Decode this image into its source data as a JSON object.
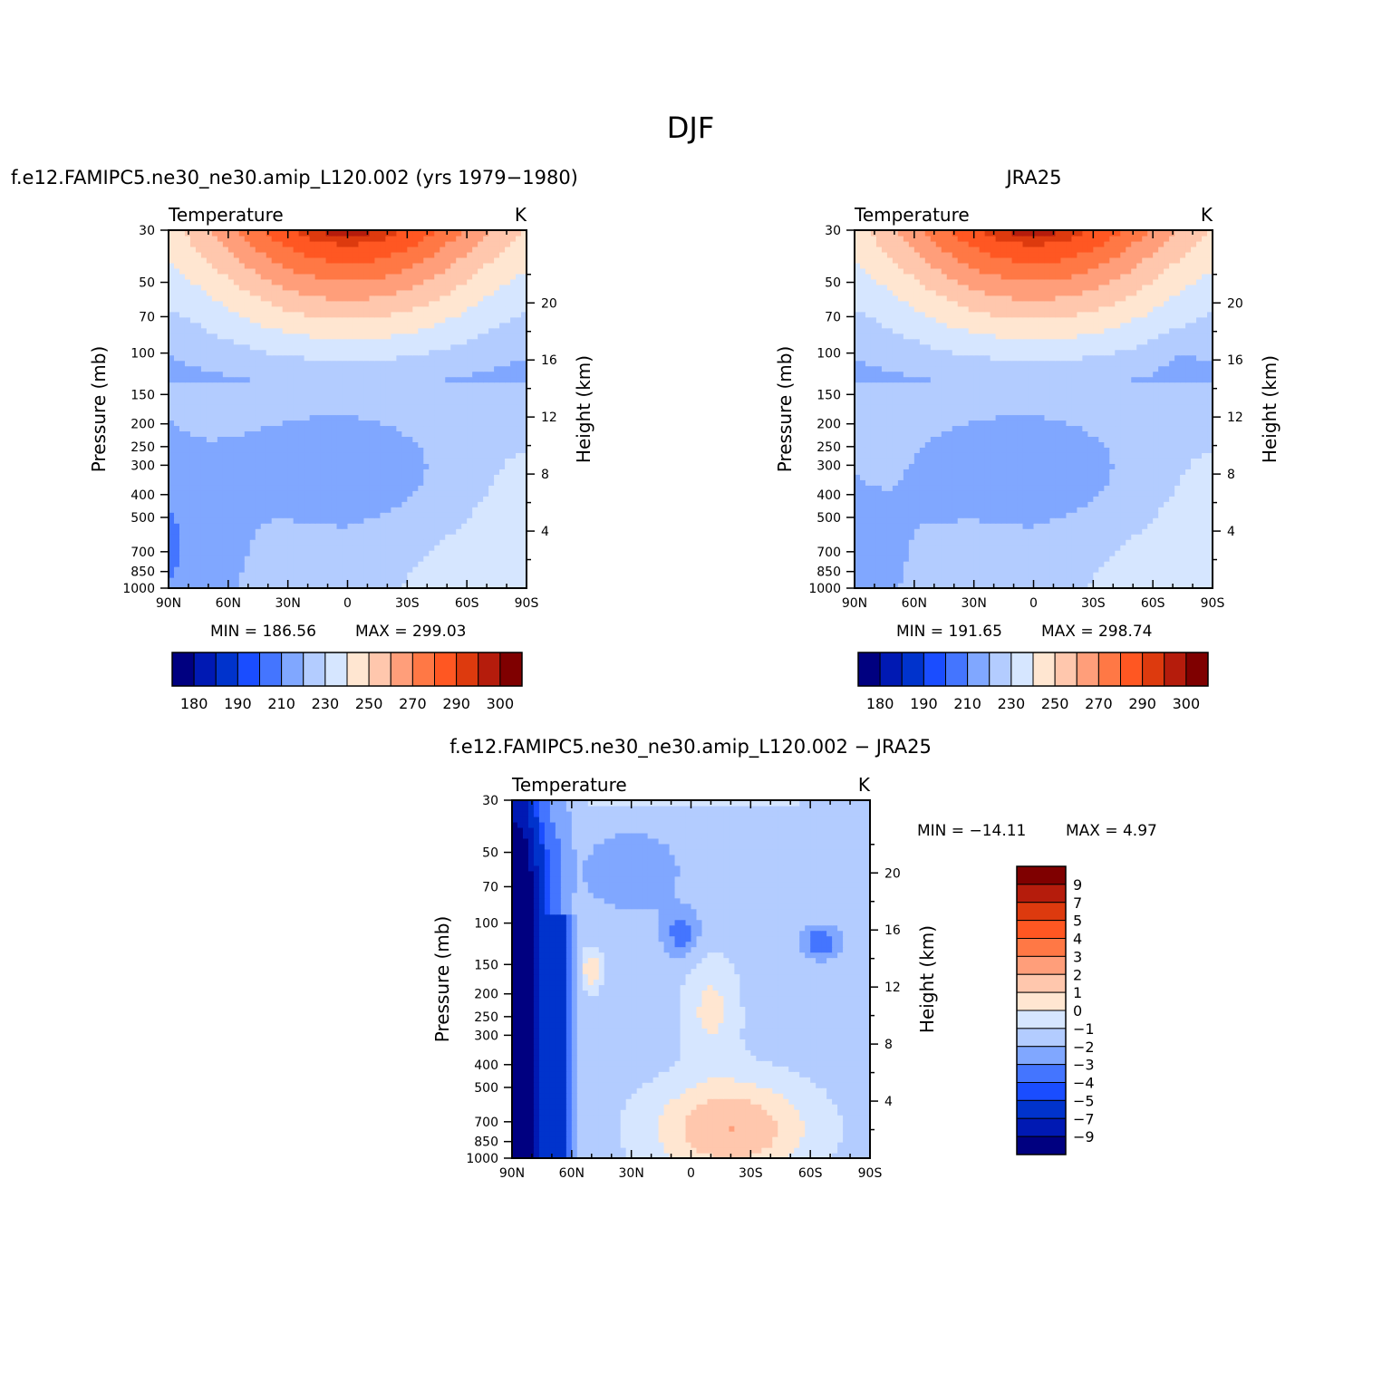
{
  "super_title": "DJF",
  "chart_data": [
    {
      "type": "heatmap",
      "title": "f.e12.FAMIPC5.ne30_ne30.amip_L120.002 (yrs 1979−1980)",
      "left_string": "Temperature",
      "right_string": "K",
      "xlabel": "",
      "ylabel": "Pressure (mb)",
      "ylabel_right": "Height (km)",
      "x_ticks": [
        "90N",
        "60N",
        "30N",
        "0",
        "30S",
        "60S",
        "90S"
      ],
      "y_ticks": [
        "30",
        "50",
        "70",
        "100",
        "150",
        "200",
        "250",
        "300",
        "400",
        "500",
        "700",
        "850",
        "1000"
      ],
      "y_right_ticks": [
        "20",
        "16",
        "12",
        "8",
        "4"
      ],
      "ylim": [
        1000,
        30
      ],
      "min_label": "MIN = 186.56",
      "max_label": "MAX = 299.03",
      "min": 186.56,
      "max": 299.03,
      "colorbar_labels": [
        "180",
        "190",
        "210",
        "230",
        "250",
        "270",
        "290",
        "300"
      ],
      "colorbar_levels": [
        180,
        185,
        190,
        200,
        210,
        220,
        230,
        240,
        250,
        260,
        270,
        280,
        290,
        295,
        300
      ]
    },
    {
      "type": "heatmap",
      "title": "JRA25",
      "left_string": "Temperature",
      "right_string": "K",
      "xlabel": "",
      "ylabel": "Pressure (mb)",
      "ylabel_right": "Height (km)",
      "x_ticks": [
        "90N",
        "60N",
        "30N",
        "0",
        "30S",
        "60S",
        "90S"
      ],
      "y_ticks": [
        "30",
        "50",
        "70",
        "100",
        "150",
        "200",
        "250",
        "300",
        "400",
        "500",
        "700",
        "850",
        "1000"
      ],
      "y_right_ticks": [
        "20",
        "16",
        "12",
        "8",
        "4"
      ],
      "ylim": [
        1000,
        30
      ],
      "min_label": "MIN = 191.65",
      "max_label": "MAX = 298.74",
      "min": 191.65,
      "max": 298.74,
      "colorbar_labels": [
        "180",
        "190",
        "210",
        "230",
        "250",
        "270",
        "290",
        "300"
      ],
      "colorbar_levels": [
        180,
        185,
        190,
        200,
        210,
        220,
        230,
        240,
        250,
        260,
        270,
        280,
        290,
        295,
        300
      ]
    },
    {
      "type": "heatmap",
      "title": "f.e12.FAMIPC5.ne30_ne30.amip_L120.002 − JRA25",
      "left_string": "Temperature",
      "right_string": "K",
      "xlabel": "",
      "ylabel": "Pressure (mb)",
      "ylabel_right": "Height (km)",
      "x_ticks": [
        "90N",
        "60N",
        "30N",
        "0",
        "30S",
        "60S",
        "90S"
      ],
      "y_ticks": [
        "30",
        "50",
        "70",
        "100",
        "150",
        "200",
        "250",
        "300",
        "400",
        "500",
        "700",
        "850",
        "1000"
      ],
      "y_right_ticks": [
        "20",
        "16",
        "12",
        "8",
        "4"
      ],
      "ylim": [
        1000,
        30
      ],
      "min_label": "MIN = −14.11",
      "max_label": "MAX = 4.97",
      "min": -14.11,
      "max": 4.97,
      "colorbar_labels": [
        "9",
        "7",
        "5",
        "4",
        "3",
        "2",
        "1",
        "0",
        "−1",
        "−2",
        "−3",
        "−4",
        "−5",
        "−7",
        "−9"
      ],
      "colorbar_levels": [
        -9,
        -7,
        -5,
        -4,
        -3,
        -2,
        -1,
        0,
        1,
        2,
        3,
        4,
        5,
        7,
        9
      ]
    }
  ],
  "colors": {
    "palette": [
      "#000080",
      "#0019b3",
      "#0033cc",
      "#1a4dff",
      "#4475ff",
      "#80a7ff",
      "#b3ccff",
      "#d6e6ff",
      "#ffe6d1",
      "#ffc7ad",
      "#ff9e7a",
      "#ff7845",
      "#ff5722",
      "#dd3a0e",
      "#b51c0c",
      "#7f0000"
    ]
  }
}
